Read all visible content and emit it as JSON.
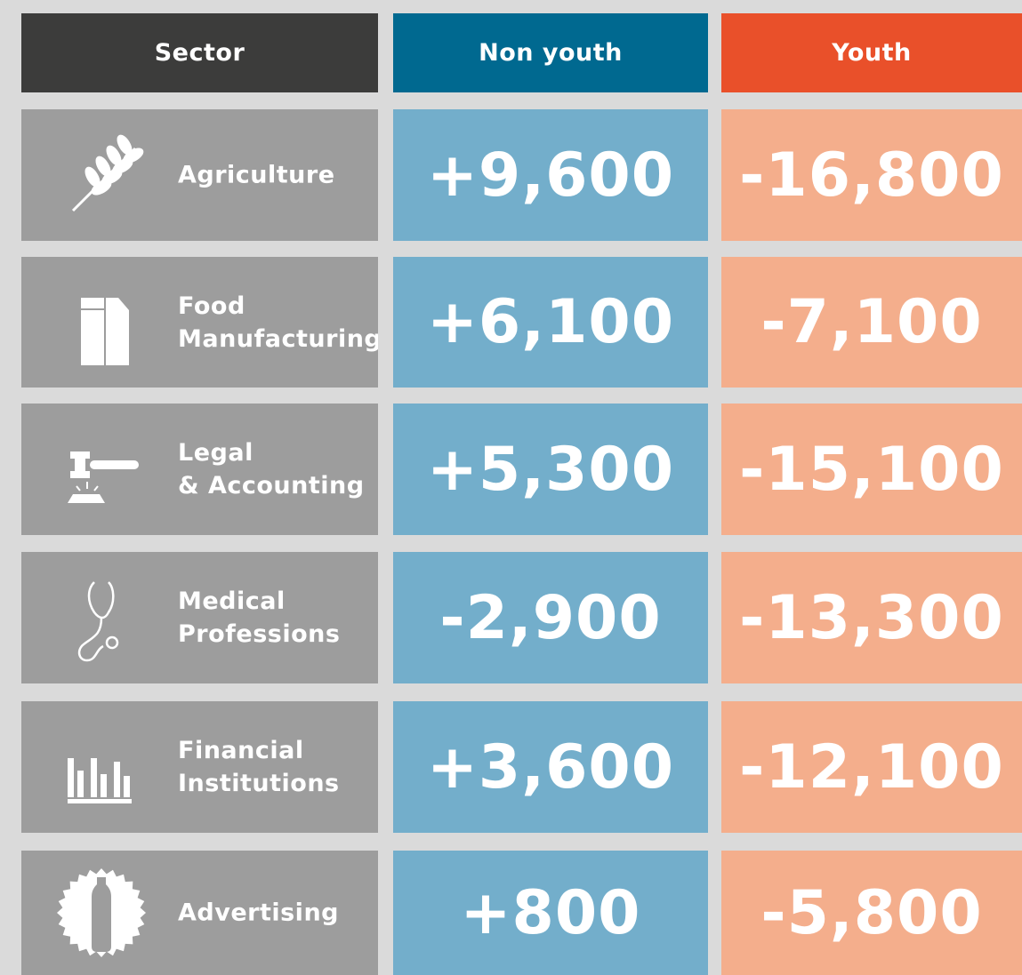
{
  "table": {
    "header": [
      "Sector",
      "Non youth",
      "Youth"
    ],
    "rows": [
      [
        [
          "Agriculture"
        ],
        "+9,600",
        "-16,800"
      ],
      [
        [
          "Food",
          "Manufacturing"
        ],
        "+6,100",
        "-7,100"
      ],
      [
        [
          "Legal",
          "& Accounting"
        ],
        "+5,300",
        "-15,100"
      ],
      [
        [
          "Medical",
          "Professions"
        ],
        "-2,900",
        "-13,300"
      ],
      [
        [
          "Financial",
          "Institutions"
        ],
        "+3,600",
        "-12,100"
      ],
      [
        [
          "Advertising"
        ],
        "+800",
        "-5,800"
      ]
    ]
  }
}
